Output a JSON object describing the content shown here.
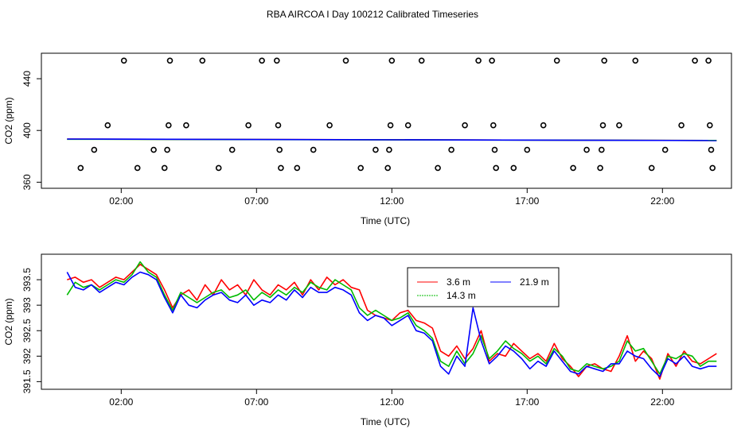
{
  "title": "RBA AIRCOA I  Day 100212  Calibrated Timeseries",
  "chart_data": [
    {
      "type": "scatter",
      "xlabel": "Time (UTC)",
      "ylabel": "CO2 (ppm)",
      "xticks": [
        2,
        7,
        12,
        17,
        22
      ],
      "xtick_labels": [
        "02:00",
        "07:00",
        "12:00",
        "17:00",
        "22:00"
      ],
      "xlim": [
        -0.95,
        24.55
      ],
      "yticks": [
        360,
        400,
        440
      ],
      "ytick_labels": [
        "360",
        "400",
        "440"
      ],
      "ylim": [
        355.3,
        459.7
      ],
      "grid": false,
      "points": [
        [
          0.5,
          371
        ],
        [
          1.0,
          385
        ],
        [
          1.5,
          404
        ],
        [
          2.1,
          454
        ],
        [
          2.6,
          371
        ],
        [
          3.2,
          385
        ],
        [
          3.6,
          371
        ],
        [
          3.7,
          385
        ],
        [
          3.75,
          404
        ],
        [
          3.8,
          454
        ],
        [
          4.4,
          404
        ],
        [
          5.0,
          454
        ],
        [
          5.6,
          371
        ],
        [
          6.1,
          385
        ],
        [
          6.7,
          404
        ],
        [
          7.2,
          454
        ],
        [
          7.75,
          454
        ],
        [
          7.8,
          404
        ],
        [
          7.85,
          385
        ],
        [
          7.9,
          371
        ],
        [
          8.5,
          371
        ],
        [
          9.1,
          385
        ],
        [
          9.7,
          404
        ],
        [
          10.3,
          454
        ],
        [
          10.85,
          371
        ],
        [
          11.4,
          385
        ],
        [
          11.85,
          371
        ],
        [
          11.9,
          385
        ],
        [
          11.95,
          404
        ],
        [
          12.0,
          454
        ],
        [
          12.6,
          404
        ],
        [
          13.1,
          454
        ],
        [
          13.7,
          371
        ],
        [
          14.2,
          385
        ],
        [
          14.7,
          404
        ],
        [
          15.2,
          454
        ],
        [
          15.7,
          454
        ],
        [
          15.75,
          404
        ],
        [
          15.8,
          385
        ],
        [
          15.85,
          371
        ],
        [
          16.5,
          371
        ],
        [
          17.0,
          385
        ],
        [
          17.6,
          404
        ],
        [
          18.1,
          454
        ],
        [
          18.7,
          371
        ],
        [
          19.2,
          385
        ],
        [
          19.7,
          371
        ],
        [
          19.75,
          385
        ],
        [
          19.8,
          404
        ],
        [
          19.85,
          454
        ],
        [
          20.4,
          404
        ],
        [
          21.0,
          454
        ],
        [
          21.6,
          371
        ],
        [
          22.1,
          385
        ],
        [
          22.7,
          404
        ],
        [
          23.2,
          454
        ],
        [
          23.7,
          454
        ],
        [
          23.75,
          404
        ],
        [
          23.8,
          385
        ],
        [
          23.85,
          371
        ]
      ],
      "series": [
        {
          "color": "#ff0000",
          "x": [
            0,
            24
          ],
          "values": [
            393.3,
            392.3
          ]
        },
        {
          "color": "#00bb00",
          "x": [
            0,
            24
          ],
          "values": [
            393.2,
            392.3
          ]
        },
        {
          "color": "#0000ff",
          "x": [
            0,
            24
          ],
          "values": [
            393.4,
            392.2
          ]
        }
      ]
    },
    {
      "type": "line",
      "xlabel": "Time (UTC)",
      "ylabel": "CO2 (ppm)",
      "xticks": [
        2,
        7,
        12,
        17,
        22
      ],
      "xtick_labels": [
        "02:00",
        "07:00",
        "12:00",
        "17:00",
        "22:00"
      ],
      "xlim": [
        -0.95,
        24.55
      ],
      "yticks": [
        391.5,
        392.0,
        392.5,
        393.0,
        393.5
      ],
      "ytick_labels": [
        "391.5",
        "392",
        "392.5",
        "393",
        "393.5"
      ],
      "ylim": [
        391.35,
        394.0
      ],
      "grid": false,
      "legend_position": "top-center",
      "series": [
        {
          "name": "3.6 m",
          "color": "#ff0000",
          "x": [
            0.0,
            0.3,
            0.6,
            0.9,
            1.2,
            1.5,
            1.8,
            2.1,
            2.4,
            2.7,
            3.0,
            3.3,
            3.6,
            3.9,
            4.2,
            4.5,
            4.8,
            5.1,
            5.4,
            5.7,
            6.0,
            6.3,
            6.6,
            6.9,
            7.2,
            7.5,
            7.8,
            8.1,
            8.4,
            8.7,
            9.0,
            9.3,
            9.6,
            9.9,
            10.2,
            10.5,
            10.8,
            11.1,
            11.4,
            11.7,
            12.0,
            12.3,
            12.6,
            12.9,
            13.2,
            13.5,
            13.8,
            14.1,
            14.4,
            14.7,
            15.0,
            15.3,
            15.6,
            15.9,
            16.2,
            16.5,
            16.8,
            17.1,
            17.4,
            17.7,
            18.0,
            18.3,
            18.6,
            18.9,
            19.2,
            19.5,
            19.8,
            20.1,
            20.4,
            20.7,
            21.0,
            21.3,
            21.6,
            21.9,
            22.2,
            22.5,
            22.8,
            23.1,
            23.4,
            23.7,
            24.0
          ],
          "values": [
            393.5,
            393.55,
            393.45,
            393.5,
            393.35,
            393.45,
            393.55,
            393.5,
            393.65,
            393.8,
            393.7,
            393.6,
            393.3,
            392.95,
            393.2,
            393.3,
            393.1,
            393.4,
            393.2,
            393.5,
            393.3,
            393.4,
            393.2,
            393.5,
            393.3,
            393.2,
            393.4,
            393.3,
            393.45,
            393.2,
            393.5,
            393.3,
            393.55,
            393.4,
            393.5,
            393.35,
            393.3,
            392.9,
            392.8,
            392.75,
            392.7,
            392.85,
            392.9,
            392.7,
            392.65,
            392.55,
            392.1,
            392.0,
            392.2,
            391.95,
            392.15,
            392.5,
            391.9,
            392.05,
            392.0,
            392.25,
            392.1,
            391.95,
            392.05,
            391.9,
            392.25,
            391.95,
            391.8,
            391.6,
            391.8,
            391.85,
            391.75,
            391.7,
            392.0,
            392.4,
            391.9,
            392.1,
            391.95,
            391.55,
            392.05,
            391.8,
            392.1,
            391.9,
            391.85,
            391.95,
            392.05
          ]
        },
        {
          "name": "14.3 m",
          "color": "#00bb00",
          "x": [
            0.0,
            0.3,
            0.6,
            0.9,
            1.2,
            1.5,
            1.8,
            2.1,
            2.4,
            2.7,
            3.0,
            3.3,
            3.6,
            3.9,
            4.2,
            4.5,
            4.8,
            5.1,
            5.4,
            5.7,
            6.0,
            6.3,
            6.6,
            6.9,
            7.2,
            7.5,
            7.8,
            8.1,
            8.4,
            8.7,
            9.0,
            9.3,
            9.6,
            9.9,
            10.2,
            10.5,
            10.8,
            11.1,
            11.4,
            11.7,
            12.0,
            12.3,
            12.6,
            12.9,
            13.2,
            13.5,
            13.8,
            14.1,
            14.4,
            14.7,
            15.0,
            15.3,
            15.6,
            15.9,
            16.2,
            16.5,
            16.8,
            17.1,
            17.4,
            17.7,
            18.0,
            18.3,
            18.6,
            18.9,
            19.2,
            19.5,
            19.8,
            20.1,
            20.4,
            20.7,
            21.0,
            21.3,
            21.6,
            21.9,
            22.2,
            22.5,
            22.8,
            23.1,
            23.4,
            23.7,
            24.0
          ],
          "values": [
            393.2,
            393.45,
            393.35,
            393.4,
            393.3,
            393.4,
            393.5,
            393.45,
            393.6,
            393.85,
            393.65,
            393.55,
            393.2,
            392.9,
            393.25,
            393.15,
            393.05,
            393.15,
            393.25,
            393.3,
            393.15,
            393.2,
            393.3,
            393.1,
            393.25,
            393.15,
            393.3,
            393.2,
            393.35,
            393.25,
            393.45,
            393.35,
            393.3,
            393.5,
            393.4,
            393.3,
            392.95,
            392.8,
            392.9,
            392.8,
            392.7,
            392.75,
            392.85,
            392.6,
            392.5,
            392.35,
            391.9,
            391.8,
            392.1,
            391.85,
            392.05,
            392.4,
            391.95,
            392.1,
            392.3,
            392.15,
            392.05,
            391.9,
            392.0,
            391.85,
            392.15,
            392.0,
            391.75,
            391.7,
            391.85,
            391.8,
            391.75,
            391.8,
            391.9,
            392.3,
            392.1,
            392.15,
            391.9,
            391.65,
            392.0,
            391.95,
            392.05,
            392.0,
            391.8,
            391.9,
            391.9
          ]
        },
        {
          "name": "21.9 m",
          "color": "#0000ff",
          "x": [
            0.0,
            0.3,
            0.6,
            0.9,
            1.2,
            1.5,
            1.8,
            2.1,
            2.4,
            2.7,
            3.0,
            3.3,
            3.6,
            3.9,
            4.2,
            4.5,
            4.8,
            5.1,
            5.4,
            5.7,
            6.0,
            6.3,
            6.6,
            6.9,
            7.2,
            7.5,
            7.8,
            8.1,
            8.4,
            8.7,
            9.0,
            9.3,
            9.6,
            9.9,
            10.2,
            10.5,
            10.8,
            11.1,
            11.4,
            11.7,
            12.0,
            12.3,
            12.6,
            12.9,
            13.2,
            13.5,
            13.8,
            14.1,
            14.4,
            14.7,
            15.0,
            15.3,
            15.6,
            15.9,
            16.2,
            16.5,
            16.8,
            17.1,
            17.4,
            17.7,
            18.0,
            18.3,
            18.6,
            18.9,
            19.2,
            19.5,
            19.8,
            20.1,
            20.4,
            20.7,
            21.0,
            21.3,
            21.6,
            21.9,
            22.2,
            22.5,
            22.8,
            23.1,
            23.4,
            23.7,
            24.0
          ],
          "values": [
            393.65,
            393.35,
            393.3,
            393.4,
            393.25,
            393.35,
            393.45,
            393.4,
            393.55,
            393.65,
            393.6,
            393.5,
            393.15,
            392.85,
            393.2,
            393.0,
            392.95,
            393.1,
            393.2,
            393.25,
            393.1,
            393.05,
            393.2,
            393.0,
            393.1,
            393.05,
            393.2,
            393.1,
            393.3,
            393.15,
            393.35,
            393.25,
            393.25,
            393.35,
            393.3,
            393.2,
            392.85,
            392.7,
            392.8,
            392.75,
            392.6,
            392.7,
            392.8,
            392.5,
            392.45,
            392.3,
            391.8,
            391.65,
            392.0,
            391.8,
            392.95,
            392.3,
            391.85,
            392.0,
            392.2,
            392.1,
            391.95,
            391.75,
            391.9,
            391.8,
            392.1,
            391.9,
            391.7,
            391.65,
            391.8,
            391.75,
            391.7,
            391.85,
            391.85,
            392.1,
            392.0,
            391.95,
            391.75,
            391.6,
            391.95,
            391.85,
            392.0,
            391.8,
            391.75,
            391.8,
            391.8
          ]
        }
      ]
    }
  ]
}
